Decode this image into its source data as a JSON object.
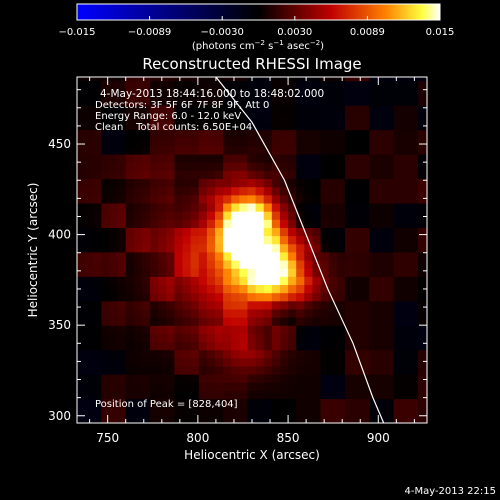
{
  "chart_data": {
    "type": "heatmap",
    "title": "Reconstructed RHESSI Image",
    "xlabel": "Heliocentric X (arcsec)",
    "ylabel": "Heliocentric Y (arcsec)",
    "xlim": [
      733,
      927
    ],
    "ylim": [
      296,
      487
    ],
    "x_ticks": [
      750,
      800,
      850,
      900
    ],
    "y_ticks": [
      300,
      350,
      400,
      450
    ],
    "colorbar": {
      "range": [
        -0.015,
        0.015
      ],
      "ticks": [
        "−0.015",
        "−0.0089",
        "−0.0030",
        "0.0030",
        "0.0089",
        "0.015"
      ],
      "label_main": "(photons cm",
      "label_exp1": "−2",
      "label_mid1": " s",
      "label_exp2": "−1",
      "label_mid2": " asec",
      "label_exp3": "−2",
      "label_end": ")",
      "colormap": "blue-black-red-yellow-white"
    },
    "annotations": [
      "4-May-2013 18:44:16.000 to 18:48:02.000",
      "Detectors: 3F 5F 6F 7F 8F 9F, Att 0",
      "Energy Range: 6.0 - 12.0 keV",
      "Clean    Total counts: 6.50E+04"
    ],
    "peak_label": "Position of Peak = [828,404]",
    "sources": [
      {
        "x": 828,
        "y": 404,
        "value": 0.015,
        "sigma_x": 12,
        "sigma_y": 15
      },
      {
        "x": 845,
        "y": 379,
        "value": 0.0115,
        "sigma_x": 13,
        "sigma_y": 12
      },
      {
        "x": 818,
        "y": 380,
        "value": 0.006,
        "sigma_x": 18,
        "sigma_y": 22
      },
      {
        "x": 790,
        "y": 392,
        "value": 0.003,
        "sigma_x": 24,
        "sigma_y": 35
      },
      {
        "x": 828,
        "y": 337,
        "value": 0.0035,
        "sigma_x": 12,
        "sigma_y": 10
      }
    ],
    "limb_curve": [
      [
        810,
        487
      ],
      [
        830,
        462
      ],
      [
        848,
        430
      ],
      [
        860,
        400
      ],
      [
        872,
        370
      ],
      [
        886,
        340
      ],
      [
        897,
        310
      ],
      [
        903,
        296
      ]
    ],
    "grid": false
  },
  "footer": {
    "date": "4-May-2013 22:15"
  }
}
